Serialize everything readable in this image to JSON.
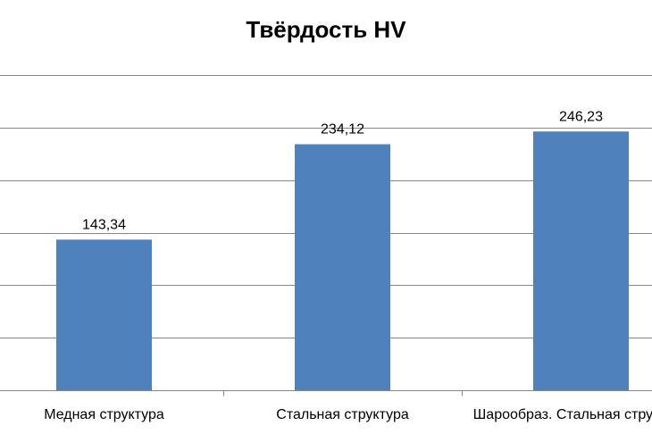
{
  "chart_data": {
    "type": "bar",
    "title": "Твёрдость HV",
    "categories": [
      "Медная структура",
      "Стальная структура",
      "Шарообраз. Стальная структура"
    ],
    "values": [
      143.34,
      234.12,
      246.23
    ],
    "value_labels": [
      "143,34",
      "234,12",
      "246,23"
    ],
    "ylim": [
      0,
      300
    ],
    "gridlines": true,
    "legend": "none",
    "bar_color": "#4F81BD",
    "grid_color": "#868686"
  }
}
